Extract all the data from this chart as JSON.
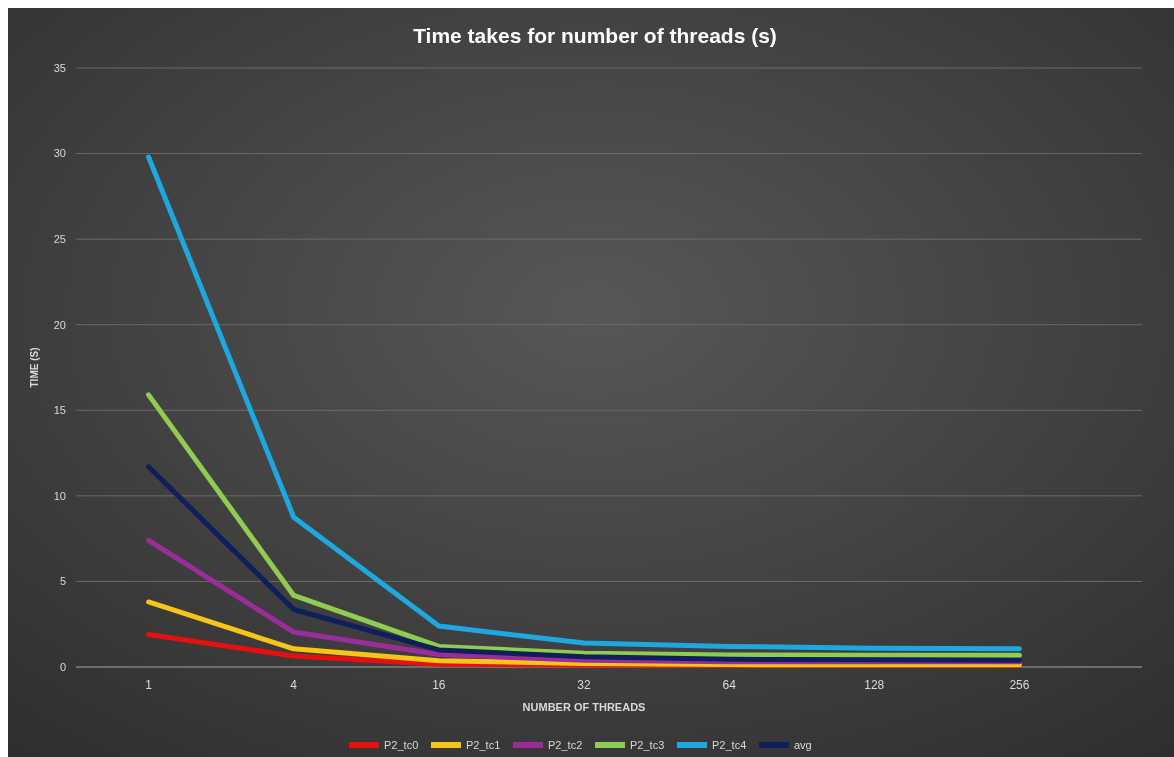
{
  "chart_data": {
    "type": "line",
    "title": "Time takes for number of threads (s)",
    "xlabel": "NUMBER OF THREADS",
    "ylabel": "TIME (S)",
    "categories": [
      "1",
      "4",
      "16",
      "32",
      "64",
      "128",
      "256"
    ],
    "ylim": [
      0,
      35
    ],
    "yticks": [
      0,
      5,
      10,
      15,
      20,
      25,
      30,
      35
    ],
    "grid": "y",
    "legend": "bottom",
    "marker": "none",
    "line_style": "solid",
    "series": [
      {
        "name": "P2_tc0",
        "color": "#e8100f",
        "values": [
          1.9,
          0.64,
          0.16,
          0.12,
          0.1,
          0.1,
          0.1
        ]
      },
      {
        "name": "P2_tc1",
        "color": "#f5c518",
        "values": [
          3.8,
          1.06,
          0.37,
          0.2,
          0.14,
          0.13,
          0.13
        ]
      },
      {
        "name": "P2_tc2",
        "color": "#9b2d9b",
        "values": [
          7.4,
          2.04,
          0.73,
          0.4,
          0.3,
          0.3,
          0.3
        ]
      },
      {
        "name": "P2_tc3",
        "color": "#8fcc4f",
        "values": [
          15.9,
          4.18,
          1.2,
          0.8,
          0.7,
          0.68,
          0.68
        ]
      },
      {
        "name": "P2_tc4",
        "color": "#1ea8e0",
        "values": [
          29.8,
          8.75,
          2.39,
          1.4,
          1.2,
          1.1,
          1.07
        ]
      },
      {
        "name": "avg",
        "color": "#0e1f5c",
        "values": [
          11.7,
          3.36,
          1.0,
          0.6,
          0.45,
          0.42,
          0.4
        ]
      }
    ]
  }
}
